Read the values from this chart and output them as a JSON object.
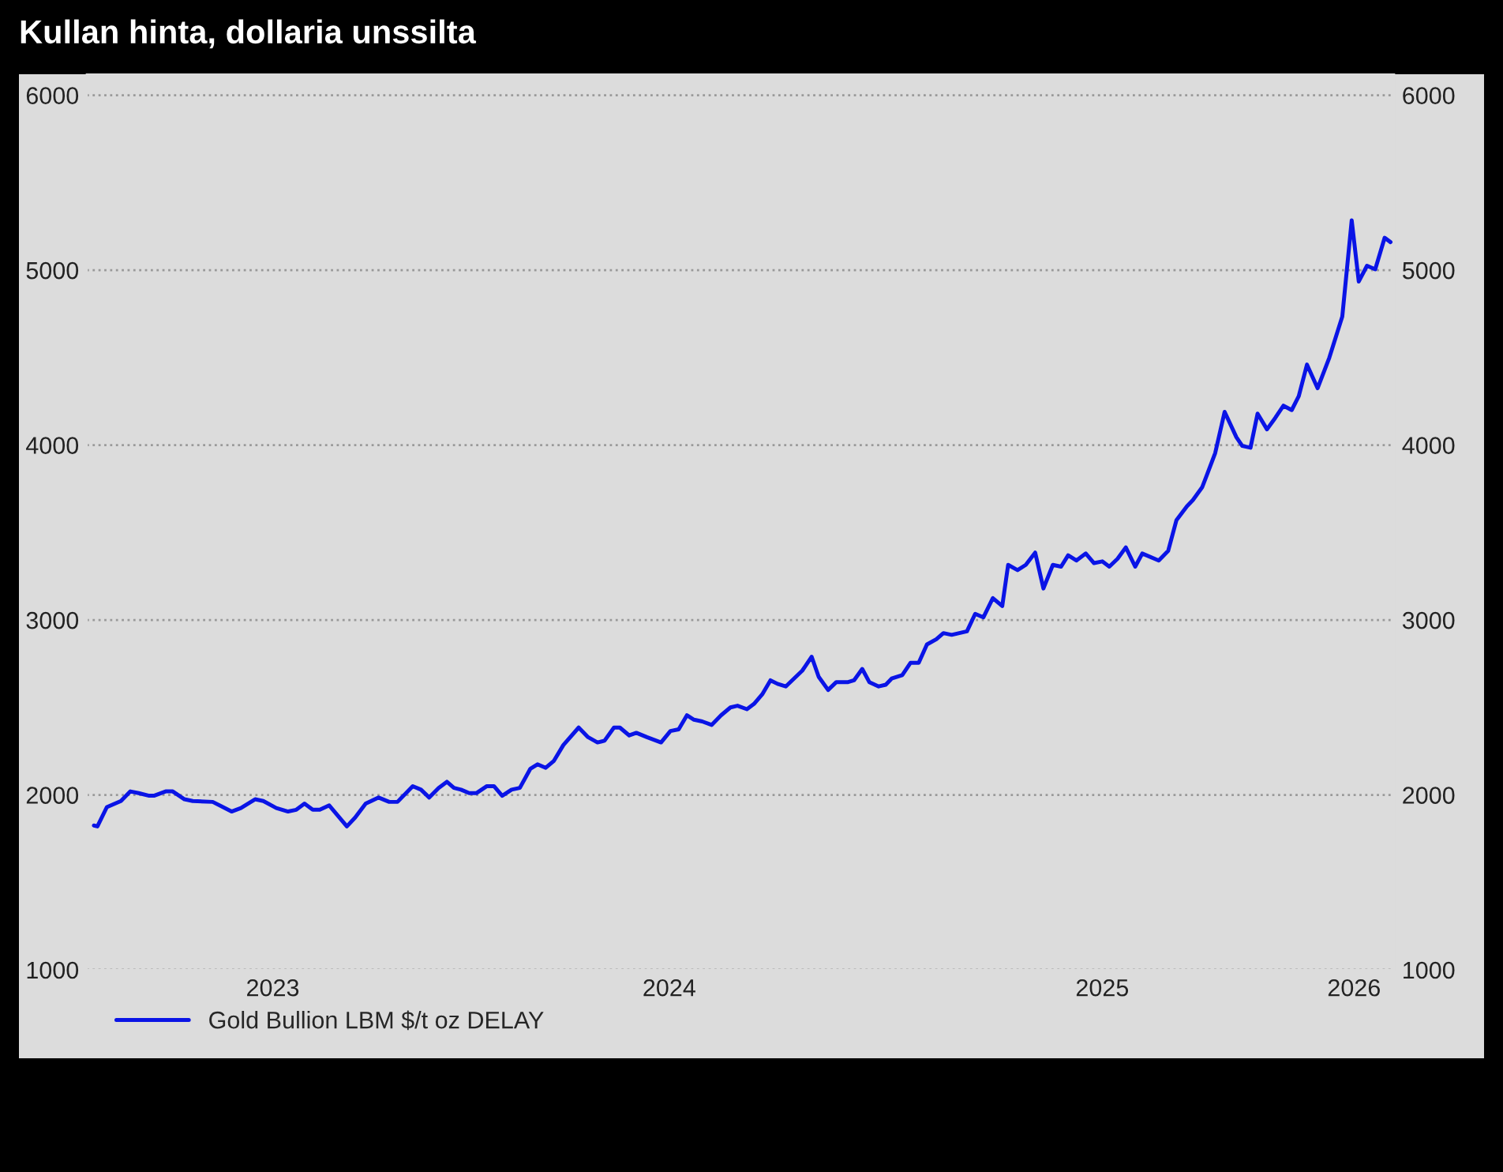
{
  "chart_data": {
    "type": "line",
    "title": "Kullan hinta, dollaria unssilta",
    "x": [
      "2023-02-26",
      "2023-03-01",
      "2023-03-09",
      "2023-03-21",
      "2023-03-29",
      "2023-04-05",
      "2023-04-14",
      "2023-04-18",
      "2023-04-28",
      "2023-05-04",
      "2023-05-14",
      "2023-05-21",
      "2023-06-07",
      "2023-06-23",
      "2023-07-01",
      "2023-07-13",
      "2023-07-20",
      "2023-07-31",
      "2023-08-10",
      "2023-08-17",
      "2023-08-24",
      "2023-08-31",
      "2023-09-06",
      "2023-09-14",
      "2023-09-29",
      "2023-10-06",
      "2023-10-15",
      "2023-10-26",
      "2023-11-04",
      "2023-11-11",
      "2023-11-24",
      "2023-12-01",
      "2023-12-08",
      "2023-12-16",
      "2023-12-23",
      "2023-12-29",
      "2024-01-04",
      "2024-01-11",
      "2024-01-17",
      "2024-01-26",
      "2024-02-01",
      "2024-02-08",
      "2024-02-16",
      "2024-02-23",
      "2024-03-03",
      "2024-03-09",
      "2024-03-16",
      "2024-03-23",
      "2024-03-31",
      "2024-04-13",
      "2024-04-21",
      "2024-04-29",
      "2024-05-05",
      "2024-05-13",
      "2024-05-18",
      "2024-05-26",
      "2024-06-01",
      "2024-06-10",
      "2024-06-22",
      "2024-06-30",
      "2024-07-07",
      "2024-07-14",
      "2024-07-20",
      "2024-07-27",
      "2024-08-04",
      "2024-08-12",
      "2024-08-20",
      "2024-08-26",
      "2024-09-03",
      "2024-09-09",
      "2024-09-16",
      "2024-09-23",
      "2024-09-29",
      "2024-10-06",
      "2024-10-13",
      "2024-10-20",
      "2024-10-28",
      "2024-11-03",
      "2024-11-11",
      "2024-11-18",
      "2024-11-28",
      "2024-12-03",
      "2024-12-10",
      "2024-12-16",
      "2024-12-24",
      "2024-12-30",
      "2025-01-04",
      "2025-01-13",
      "2025-01-20",
      "2025-01-27",
      "2025-02-03",
      "2025-02-11",
      "2025-02-17",
      "2025-02-24",
      "2025-03-09",
      "2025-03-16",
      "2025-03-23",
      "2025-03-31",
      "2025-04-08",
      "2025-04-13",
      "2025-04-21",
      "2025-04-28",
      "2025-05-06",
      "2025-05-13",
      "2025-05-21",
      "2025-05-28",
      "2025-06-03",
      "2025-06-10",
      "2025-06-18",
      "2025-06-25",
      "2025-07-02",
      "2025-07-08",
      "2025-07-15",
      "2025-07-22",
      "2025-07-30",
      "2025-08-05",
      "2025-08-19",
      "2025-08-27",
      "2025-09-03",
      "2025-09-12",
      "2025-09-17",
      "2025-09-25",
      "2025-09-29",
      "2025-10-06",
      "2025-10-14",
      "2025-10-24",
      "2025-10-29",
      "2025-11-05",
      "2025-11-11",
      "2025-11-19",
      "2025-11-26",
      "2025-12-03",
      "2025-12-10",
      "2025-12-16",
      "2025-12-23",
      "2026-01-01",
      "2026-01-11",
      "2026-01-22",
      "2026-01-30",
      "2026-02-05",
      "2026-02-12",
      "2026-02-19",
      "2026-02-27",
      "2026-03-04"
    ],
    "series": [
      {
        "name": "Gold Bullion LBM $/t oz DELAY",
        "color": "#0a14e6",
        "values": [
          1825,
          1820,
          1930,
          1965,
          2020,
          2010,
          1995,
          1995,
          2020,
          2020,
          1975,
          1965,
          1960,
          1905,
          1925,
          1975,
          1965,
          1925,
          1905,
          1915,
          1950,
          1915,
          1915,
          1940,
          1820,
          1870,
          1950,
          1985,
          1960,
          1960,
          2050,
          2030,
          1985,
          2040,
          2075,
          2040,
          2030,
          2010,
          2010,
          2050,
          2050,
          1995,
          2030,
          2040,
          2150,
          2175,
          2155,
          2195,
          2285,
          2385,
          2330,
          2300,
          2310,
          2385,
          2385,
          2340,
          2355,
          2330,
          2300,
          2365,
          2375,
          2455,
          2430,
          2420,
          2400,
          2455,
          2500,
          2510,
          2490,
          2520,
          2575,
          2655,
          2635,
          2620,
          2665,
          2710,
          2790,
          2675,
          2600,
          2645,
          2645,
          2655,
          2720,
          2645,
          2620,
          2630,
          2665,
          2685,
          2755,
          2755,
          2860,
          2890,
          2925,
          2915,
          2935,
          3035,
          3015,
          3125,
          3080,
          3315,
          3285,
          3315,
          3385,
          3180,
          3315,
          3305,
          3370,
          3340,
          3380,
          3325,
          3335,
          3305,
          3350,
          3415,
          3305,
          3380,
          3340,
          3395,
          3570,
          3650,
          3685,
          3760,
          3830,
          3955,
          4190,
          4045,
          3995,
          3985,
          4180,
          4090,
          4155,
          4225,
          4200,
          4280,
          4460,
          4325,
          4500,
          4735,
          5285,
          4935,
          5025,
          5005,
          5185,
          5160
        ]
      }
    ],
    "xlim": [
      "2023-02-20",
      "2026-03-07"
    ],
    "xticks": [
      {
        "value": "2023-07-28",
        "label": "2023"
      },
      {
        "value": "2024-06-29",
        "label": "2024"
      },
      {
        "value": "2025-07-02",
        "label": "2025"
      },
      {
        "value": "2026-02-01",
        "label": "2026"
      }
    ],
    "ylim": [
      1000,
      6120
    ],
    "yticks": [
      1000,
      2000,
      3000,
      4000,
      5000,
      6000
    ],
    "y2lim": [
      1000,
      6120
    ],
    "y2ticks": [
      1000,
      2000,
      3000,
      4000,
      5000,
      6000
    ],
    "grid": "y",
    "legend": "bottom left",
    "marker": "none",
    "line_style": "solid"
  }
}
